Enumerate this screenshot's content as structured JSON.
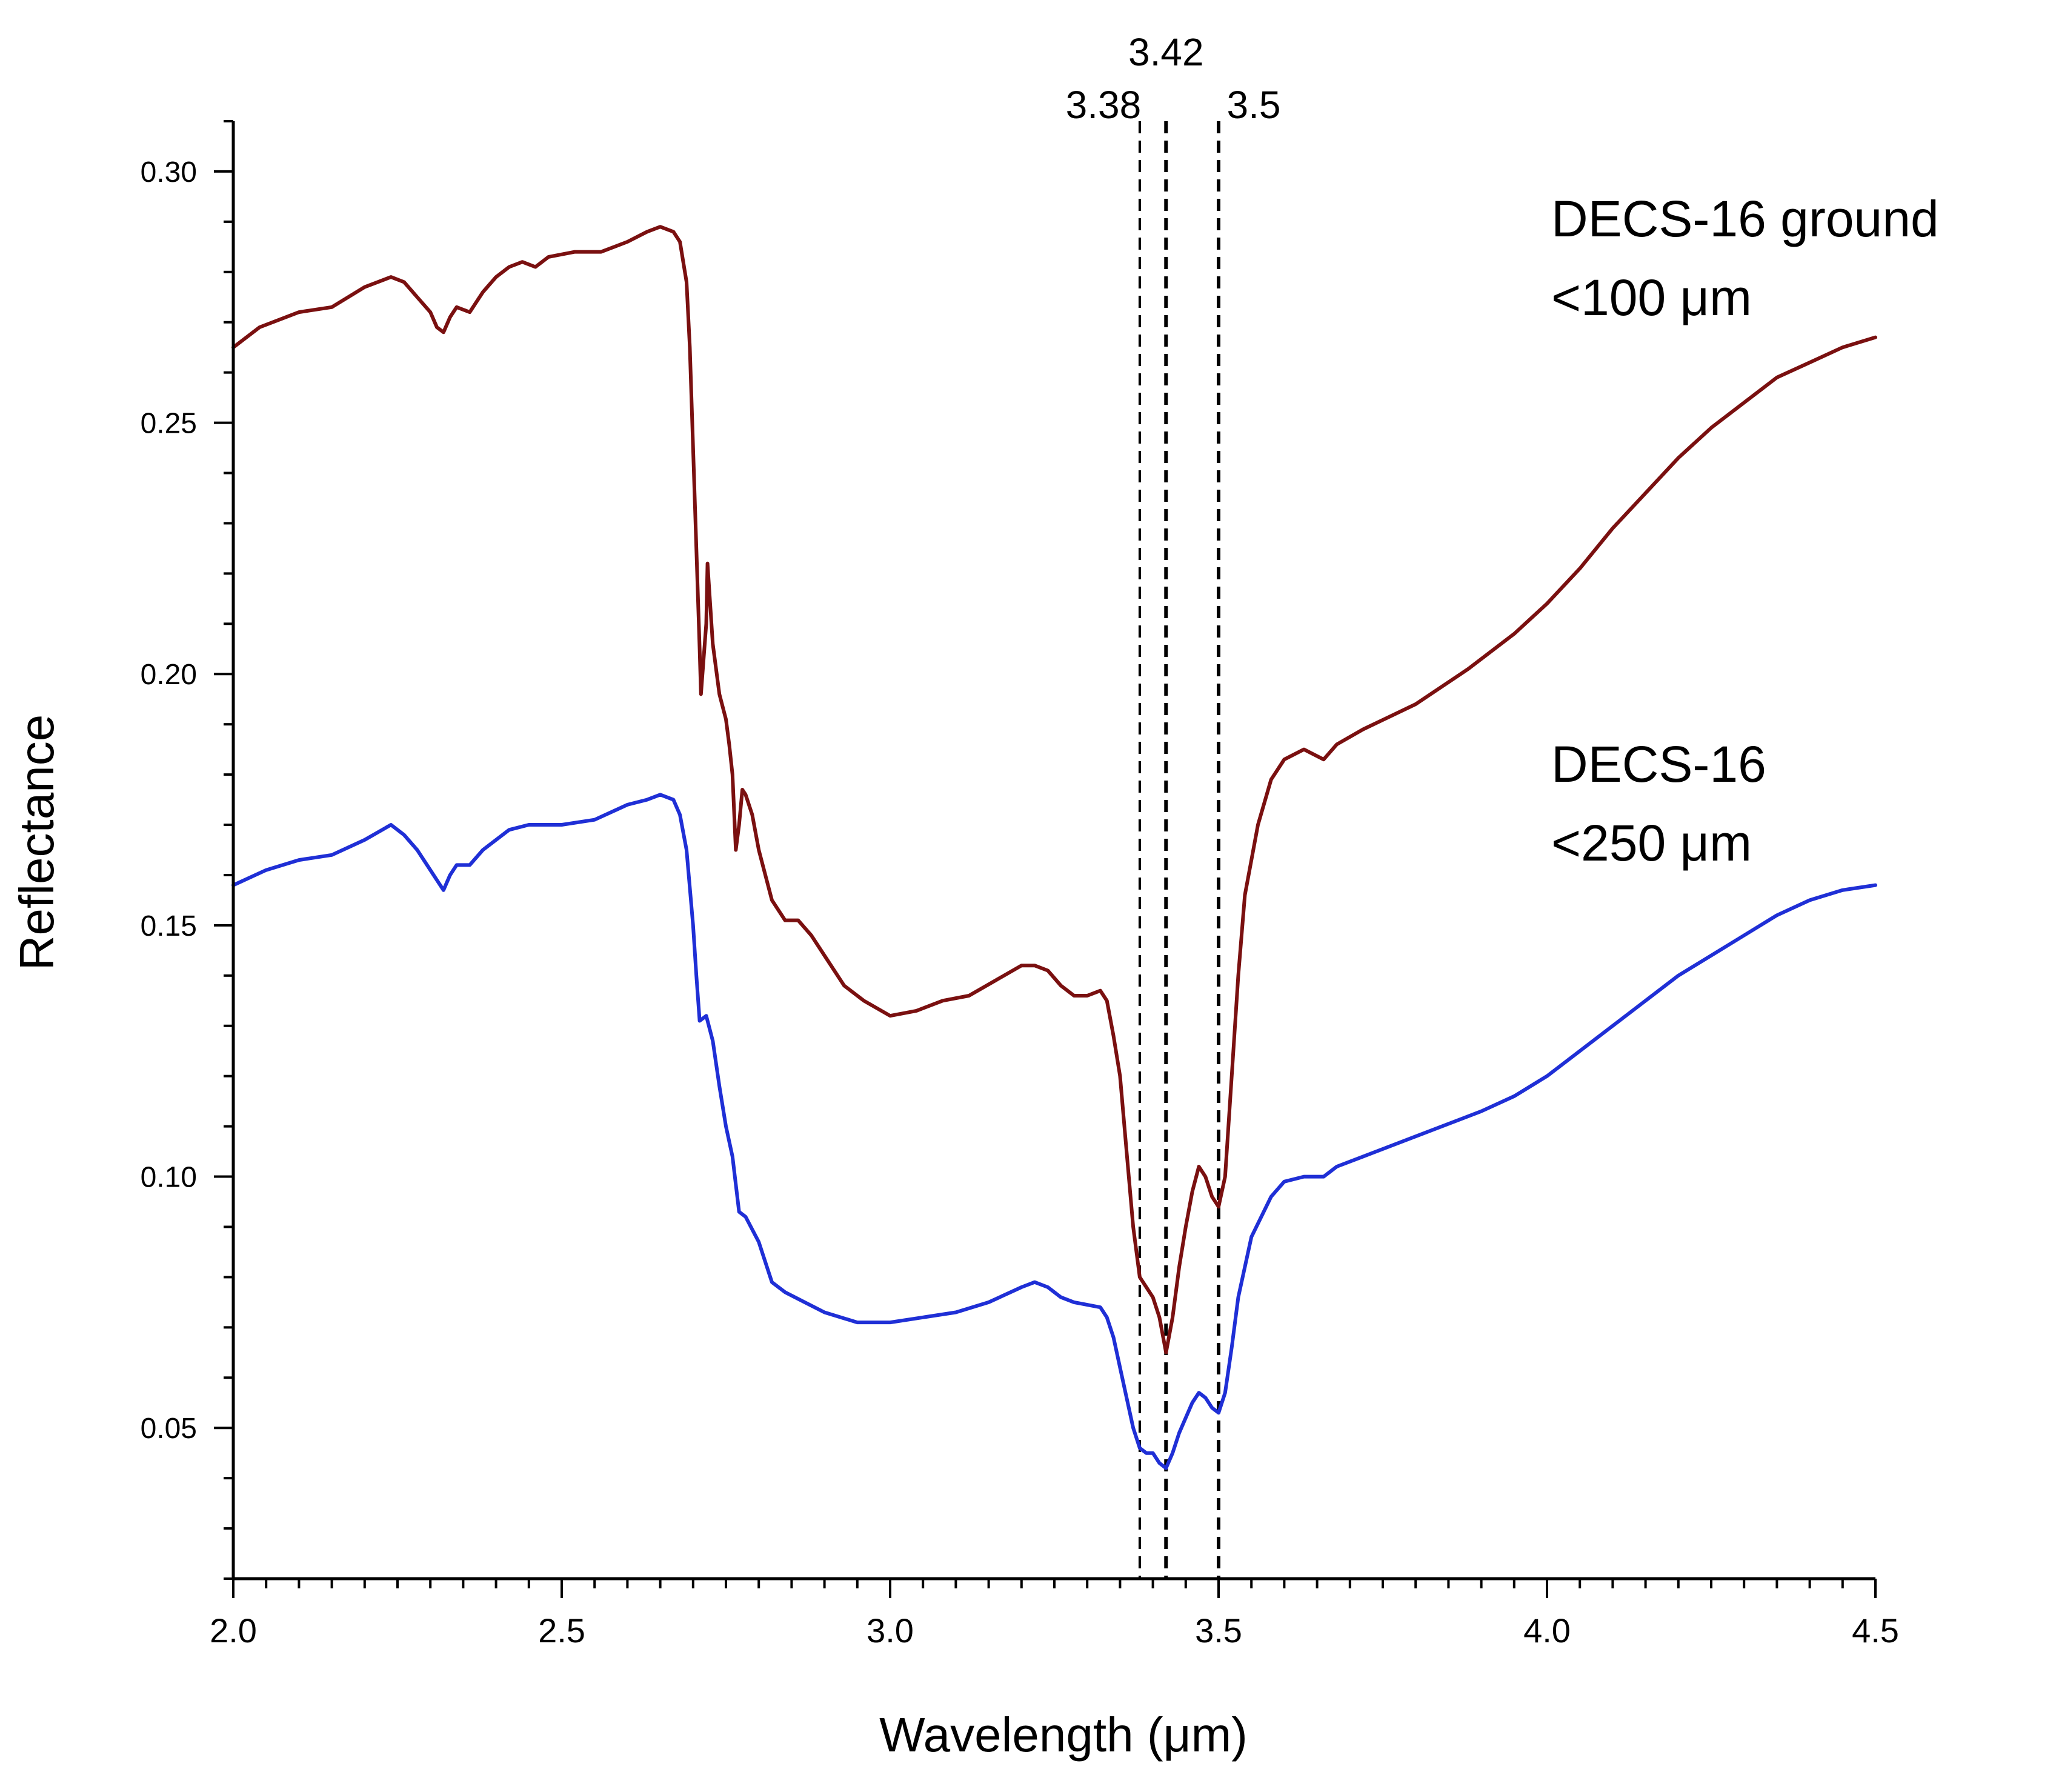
{
  "chart_data": {
    "type": "line",
    "title": "",
    "xlabel": "Wavelength (μm)",
    "ylabel": "Reflectance",
    "xlim": [
      2.0,
      4.5
    ],
    "ylim": [
      0.02,
      0.31
    ],
    "xticks": [
      2.0,
      2.5,
      3.0,
      3.5,
      4.0,
      4.5
    ],
    "xtick_labels": [
      "2.0",
      "2.5",
      "3.0",
      "3.5",
      "4.0",
      "4.5"
    ],
    "yticks": [
      0.05,
      0.1,
      0.15,
      0.2,
      0.25,
      0.3
    ],
    "ytick_labels": [
      "0.05",
      "0.10",
      "0.15",
      "0.20",
      "0.25",
      "0.30"
    ],
    "grid": false,
    "reference_lines": [
      {
        "x": 3.38,
        "label": "3.38"
      },
      {
        "x": 3.42,
        "label": "3.42"
      },
      {
        "x": 3.5,
        "label": "3.5"
      }
    ],
    "series": [
      {
        "name": "DECS-16 ground <100 μm",
        "label_lines": [
          "DECS-16 ground",
          "<100 μm"
        ],
        "color": "#7a1010",
        "points": [
          [
            2.0,
            0.265
          ],
          [
            2.04,
            0.269
          ],
          [
            2.1,
            0.272
          ],
          [
            2.15,
            0.273
          ],
          [
            2.2,
            0.277
          ],
          [
            2.24,
            0.279
          ],
          [
            2.26,
            0.278
          ],
          [
            2.28,
            0.275
          ],
          [
            2.3,
            0.272
          ],
          [
            2.31,
            0.269
          ],
          [
            2.32,
            0.268
          ],
          [
            2.33,
            0.271
          ],
          [
            2.34,
            0.273
          ],
          [
            2.36,
            0.272
          ],
          [
            2.38,
            0.276
          ],
          [
            2.4,
            0.279
          ],
          [
            2.42,
            0.281
          ],
          [
            2.44,
            0.282
          ],
          [
            2.46,
            0.281
          ],
          [
            2.48,
            0.283
          ],
          [
            2.52,
            0.284
          ],
          [
            2.56,
            0.284
          ],
          [
            2.6,
            0.286
          ],
          [
            2.63,
            0.288
          ],
          [
            2.65,
            0.289
          ],
          [
            2.67,
            0.288
          ],
          [
            2.68,
            0.286
          ],
          [
            2.69,
            0.278
          ],
          [
            2.695,
            0.265
          ],
          [
            2.7,
            0.245
          ],
          [
            2.705,
            0.225
          ],
          [
            2.71,
            0.205
          ],
          [
            2.712,
            0.196
          ],
          [
            2.72,
            0.21
          ],
          [
            2.722,
            0.222
          ],
          [
            2.73,
            0.206
          ],
          [
            2.74,
            0.196
          ],
          [
            2.75,
            0.191
          ],
          [
            2.755,
            0.186
          ],
          [
            2.76,
            0.18
          ],
          [
            2.765,
            0.165
          ],
          [
            2.77,
            0.17
          ],
          [
            2.775,
            0.177
          ],
          [
            2.78,
            0.176
          ],
          [
            2.79,
            0.172
          ],
          [
            2.8,
            0.165
          ],
          [
            2.82,
            0.155
          ],
          [
            2.84,
            0.151
          ],
          [
            2.86,
            0.151
          ],
          [
            2.88,
            0.148
          ],
          [
            2.9,
            0.144
          ],
          [
            2.93,
            0.138
          ],
          [
            2.96,
            0.135
          ],
          [
            3.0,
            0.132
          ],
          [
            3.04,
            0.133
          ],
          [
            3.08,
            0.135
          ],
          [
            3.12,
            0.136
          ],
          [
            3.16,
            0.139
          ],
          [
            3.2,
            0.142
          ],
          [
            3.22,
            0.142
          ],
          [
            3.24,
            0.141
          ],
          [
            3.26,
            0.138
          ],
          [
            3.28,
            0.136
          ],
          [
            3.3,
            0.136
          ],
          [
            3.32,
            0.137
          ],
          [
            3.33,
            0.135
          ],
          [
            3.34,
            0.128
          ],
          [
            3.35,
            0.12
          ],
          [
            3.36,
            0.105
          ],
          [
            3.37,
            0.09
          ],
          [
            3.38,
            0.08
          ],
          [
            3.39,
            0.078
          ],
          [
            3.4,
            0.076
          ],
          [
            3.41,
            0.072
          ],
          [
            3.42,
            0.065
          ],
          [
            3.43,
            0.072
          ],
          [
            3.44,
            0.082
          ],
          [
            3.45,
            0.09
          ],
          [
            3.46,
            0.097
          ],
          [
            3.47,
            0.102
          ],
          [
            3.48,
            0.1
          ],
          [
            3.49,
            0.096
          ],
          [
            3.5,
            0.094
          ],
          [
            3.51,
            0.1
          ],
          [
            3.52,
            0.12
          ],
          [
            3.53,
            0.14
          ],
          [
            3.54,
            0.156
          ],
          [
            3.56,
            0.17
          ],
          [
            3.58,
            0.179
          ],
          [
            3.6,
            0.183
          ],
          [
            3.63,
            0.185
          ],
          [
            3.66,
            0.183
          ],
          [
            3.68,
            0.186
          ],
          [
            3.72,
            0.189
          ],
          [
            3.8,
            0.194
          ],
          [
            3.88,
            0.201
          ],
          [
            3.95,
            0.208
          ],
          [
            4.0,
            0.214
          ],
          [
            4.05,
            0.221
          ],
          [
            4.1,
            0.229
          ],
          [
            4.15,
            0.236
          ],
          [
            4.2,
            0.243
          ],
          [
            4.25,
            0.249
          ],
          [
            4.3,
            0.254
          ],
          [
            4.35,
            0.259
          ],
          [
            4.4,
            0.262
          ],
          [
            4.45,
            0.265
          ],
          [
            4.5,
            0.267
          ]
        ]
      },
      {
        "name": "DECS-16 <250 μm",
        "label_lines": [
          "DECS-16",
          "<250 μm"
        ],
        "color": "#1f2fd6",
        "points": [
          [
            2.0,
            0.158
          ],
          [
            2.05,
            0.161
          ],
          [
            2.1,
            0.163
          ],
          [
            2.15,
            0.164
          ],
          [
            2.2,
            0.167
          ],
          [
            2.24,
            0.17
          ],
          [
            2.26,
            0.168
          ],
          [
            2.28,
            0.165
          ],
          [
            2.3,
            0.161
          ],
          [
            2.31,
            0.159
          ],
          [
            2.32,
            0.157
          ],
          [
            2.33,
            0.16
          ],
          [
            2.34,
            0.162
          ],
          [
            2.36,
            0.162
          ],
          [
            2.38,
            0.165
          ],
          [
            2.42,
            0.169
          ],
          [
            2.45,
            0.17
          ],
          [
            2.5,
            0.17
          ],
          [
            2.55,
            0.171
          ],
          [
            2.6,
            0.174
          ],
          [
            2.63,
            0.175
          ],
          [
            2.65,
            0.176
          ],
          [
            2.67,
            0.175
          ],
          [
            2.68,
            0.172
          ],
          [
            2.69,
            0.165
          ],
          [
            2.7,
            0.15
          ],
          [
            2.705,
            0.14
          ],
          [
            2.71,
            0.131
          ],
          [
            2.72,
            0.132
          ],
          [
            2.73,
            0.127
          ],
          [
            2.74,
            0.118
          ],
          [
            2.75,
            0.11
          ],
          [
            2.76,
            0.104
          ],
          [
            2.77,
            0.093
          ],
          [
            2.78,
            0.092
          ],
          [
            2.8,
            0.087
          ],
          [
            2.82,
            0.079
          ],
          [
            2.84,
            0.077
          ],
          [
            2.87,
            0.075
          ],
          [
            2.9,
            0.073
          ],
          [
            2.95,
            0.071
          ],
          [
            3.0,
            0.071
          ],
          [
            3.05,
            0.072
          ],
          [
            3.1,
            0.073
          ],
          [
            3.15,
            0.075
          ],
          [
            3.2,
            0.078
          ],
          [
            3.22,
            0.079
          ],
          [
            3.24,
            0.078
          ],
          [
            3.26,
            0.076
          ],
          [
            3.28,
            0.075
          ],
          [
            3.32,
            0.074
          ],
          [
            3.33,
            0.072
          ],
          [
            3.34,
            0.068
          ],
          [
            3.35,
            0.062
          ],
          [
            3.36,
            0.056
          ],
          [
            3.37,
            0.05
          ],
          [
            3.38,
            0.046
          ],
          [
            3.39,
            0.045
          ],
          [
            3.4,
            0.045
          ],
          [
            3.41,
            0.043
          ],
          [
            3.42,
            0.042
          ],
          [
            3.43,
            0.045
          ],
          [
            3.44,
            0.049
          ],
          [
            3.45,
            0.052
          ],
          [
            3.46,
            0.055
          ],
          [
            3.47,
            0.057
          ],
          [
            3.48,
            0.056
          ],
          [
            3.49,
            0.054
          ],
          [
            3.5,
            0.053
          ],
          [
            3.51,
            0.057
          ],
          [
            3.52,
            0.066
          ],
          [
            3.53,
            0.076
          ],
          [
            3.55,
            0.088
          ],
          [
            3.58,
            0.096
          ],
          [
            3.6,
            0.099
          ],
          [
            3.63,
            0.1
          ],
          [
            3.66,
            0.1
          ],
          [
            3.68,
            0.102
          ],
          [
            3.72,
            0.104
          ],
          [
            3.8,
            0.108
          ],
          [
            3.9,
            0.113
          ],
          [
            3.95,
            0.116
          ],
          [
            4.0,
            0.12
          ],
          [
            4.05,
            0.125
          ],
          [
            4.1,
            0.13
          ],
          [
            4.15,
            0.135
          ],
          [
            4.2,
            0.14
          ],
          [
            4.25,
            0.144
          ],
          [
            4.3,
            0.148
          ],
          [
            4.35,
            0.152
          ],
          [
            4.4,
            0.155
          ],
          [
            4.45,
            0.157
          ],
          [
            4.5,
            0.158
          ]
        ]
      }
    ]
  }
}
